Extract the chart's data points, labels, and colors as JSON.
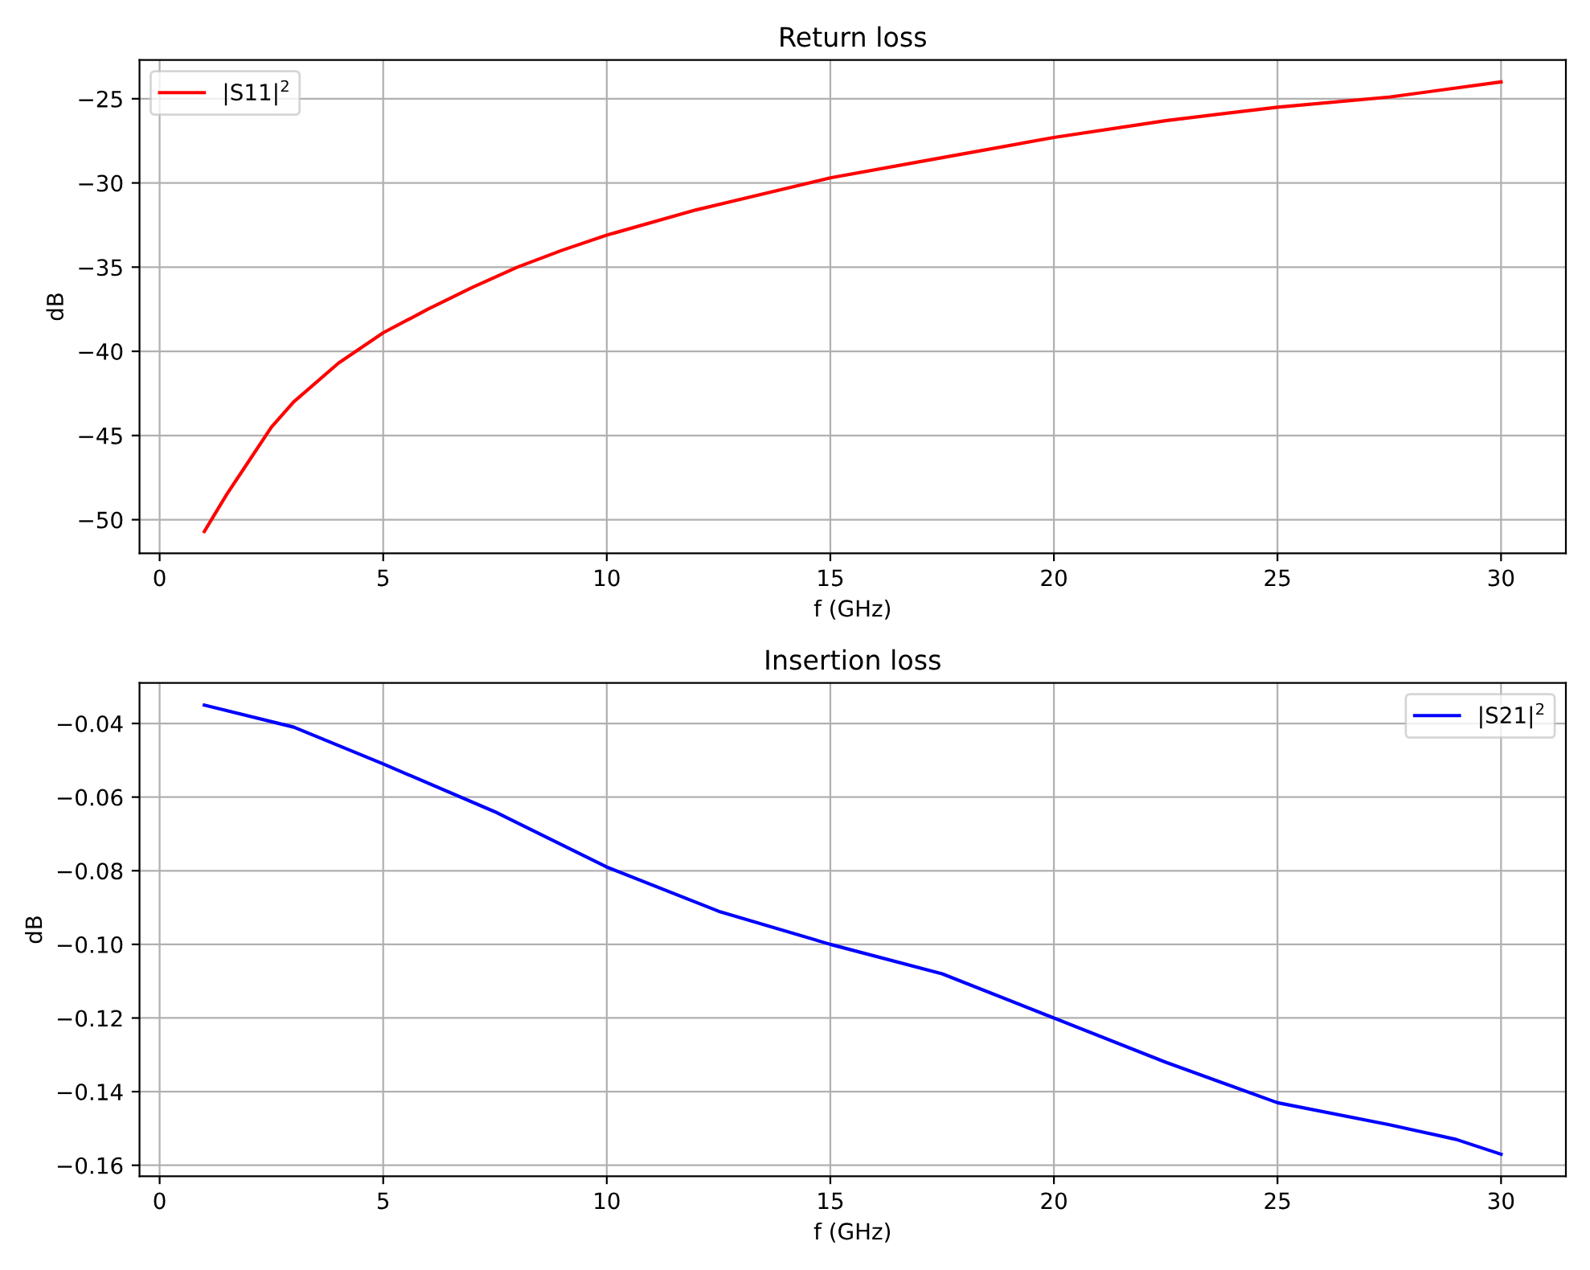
{
  "chart_data": [
    {
      "type": "line",
      "title": "Return loss",
      "xlabel": "f (GHz)",
      "ylabel": "dB",
      "x": [
        1,
        1.5,
        2,
        2.5,
        3,
        4,
        5,
        6,
        7,
        8,
        9,
        10,
        12,
        15,
        17.5,
        20,
        22.5,
        25,
        27.5,
        30
      ],
      "series": [
        {
          "name": "|S11|$^{2}$",
          "color": "#ff0000",
          "values": [
            -50.7,
            -48.5,
            -46.5,
            -44.5,
            -43.0,
            -40.7,
            -38.9,
            -37.5,
            -36.2,
            -35.0,
            -34.0,
            -33.1,
            -31.6,
            -29.7,
            -28.5,
            -27.3,
            -26.3,
            -25.5,
            -24.9,
            -24.0
          ]
        }
      ],
      "xlim": [
        -0.45,
        31.45
      ],
      "ylim": [
        -52,
        -22.7
      ],
      "xticks": [
        0,
        5,
        10,
        15,
        20,
        25,
        30
      ],
      "yticks": [
        {
          "value": -50,
          "label": "−50"
        },
        {
          "value": -45,
          "label": "−45"
        },
        {
          "value": -40,
          "label": "−40"
        },
        {
          "value": -35,
          "label": "−35"
        },
        {
          "value": -30,
          "label": "−30"
        },
        {
          "value": -25,
          "label": "−25"
        }
      ],
      "grid": true,
      "legend": "top left",
      "marker": "none",
      "line_style": "solid"
    },
    {
      "type": "line",
      "title": "Insertion loss",
      "xlabel": "f (GHz)",
      "ylabel": "dB",
      "x": [
        1,
        3,
        5,
        7.5,
        10,
        12.5,
        15,
        17.5,
        20,
        22.5,
        25,
        27.5,
        29,
        30
      ],
      "series": [
        {
          "name": "|S21|$^{2}$",
          "color": "#0000ff",
          "values": [
            -0.035,
            -0.041,
            -0.051,
            -0.064,
            -0.079,
            -0.091,
            -0.1,
            -0.108,
            -0.12,
            -0.132,
            -0.143,
            -0.149,
            -0.153,
            -0.157
          ]
        }
      ],
      "xlim": [
        -0.45,
        31.45
      ],
      "ylim": [
        -0.163,
        -0.029
      ],
      "xticks": [
        0,
        5,
        10,
        15,
        20,
        25,
        30
      ],
      "yticks": [
        {
          "value": -0.16,
          "label": "−0.16"
        },
        {
          "value": -0.14,
          "label": "−0.14"
        },
        {
          "value": -0.12,
          "label": "−0.12"
        },
        {
          "value": -0.1,
          "label": "−0.10"
        },
        {
          "value": -0.08,
          "label": "−0.08"
        },
        {
          "value": -0.06,
          "label": "−0.06"
        },
        {
          "value": -0.04,
          "label": "−0.04"
        }
      ],
      "grid": true,
      "legend": "top right",
      "marker": "none",
      "line_style": "solid"
    }
  ]
}
